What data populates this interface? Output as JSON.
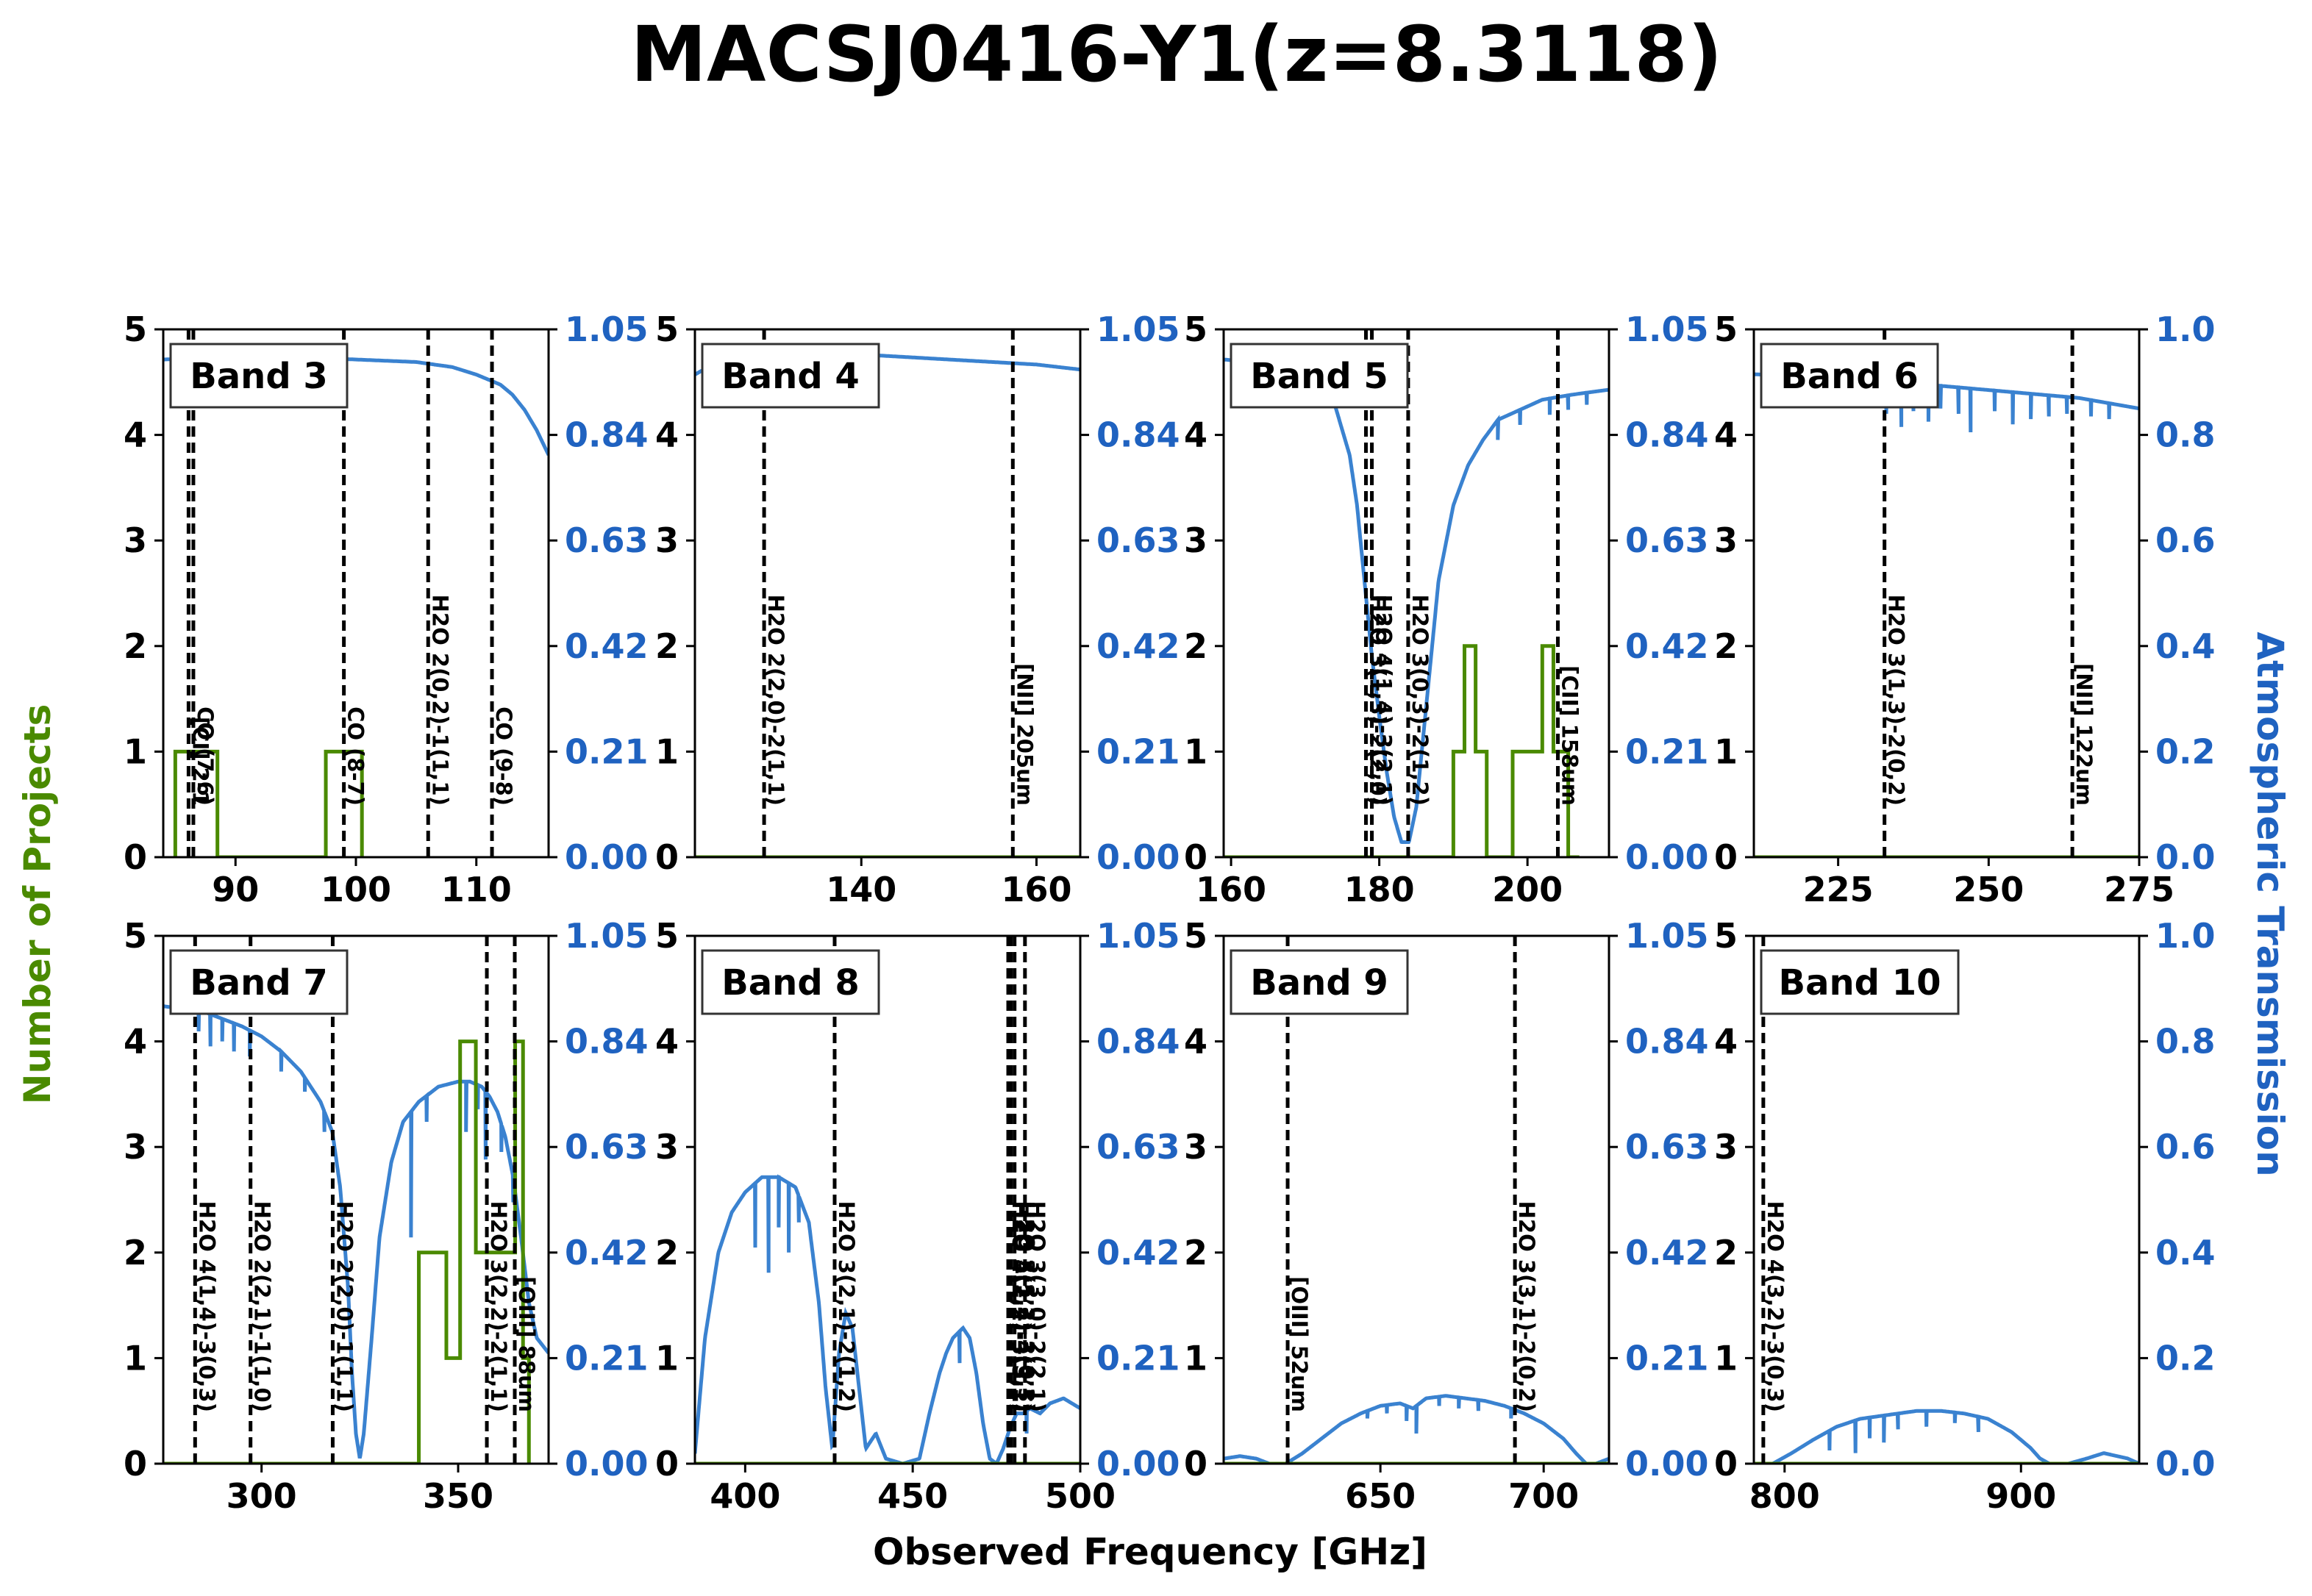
{
  "figure": {
    "title": "MACSJ0416-Y1(z=8.3118)",
    "xlabel": "Observed Frequency [GHz]",
    "ylabel_left": "Number of Projects",
    "ylabel_right": "Atmospheric Transmission",
    "colors": {
      "projects": "#4a8a00",
      "transmission": "#3a82d0",
      "right_axis": "#1f62c0",
      "left_label": "#4a8a00",
      "lines": "#000000"
    }
  },
  "chart_data": [
    {
      "type": "line",
      "band": "Band 3",
      "xlim": [
        84,
        116
      ],
      "ylim_left": [
        0,
        5
      ],
      "ylim_right": [
        0,
        1.05
      ],
      "xticks": [
        90,
        100,
        110
      ],
      "yticks_left": [
        0,
        1,
        2,
        3,
        4,
        5
      ],
      "yticks_right": [
        "0.00",
        "0.21",
        "0.42",
        "0.63",
        "0.84",
        "1.05"
      ],
      "projects_step": {
        "edges": [
          85,
          86,
          87,
          88.5,
          97.5,
          100.5
        ],
        "counts": [
          1,
          1,
          1,
          0,
          1
        ]
      },
      "transmission": {
        "x": [
          84,
          90,
          95,
          100,
          105,
          108,
          110,
          112,
          113,
          114,
          115,
          116
        ],
        "y": [
          0.99,
          0.995,
          0.995,
          0.99,
          0.985,
          0.975,
          0.96,
          0.94,
          0.92,
          0.89,
          0.85,
          0.8
        ]
      },
      "transmission_dips": [],
      "lines": [
        {
          "x": 86.1,
          "label": "[CI] 2-1"
        },
        {
          "x": 86.5,
          "label": "CO (7-6)"
        },
        {
          "x": 99.0,
          "label": "CO (8-7)"
        },
        {
          "x": 106.0,
          "label": "H2O 2(0,2)-1(1,1)"
        },
        {
          "x": 111.3,
          "label": "CO (9-8)"
        }
      ]
    },
    {
      "type": "line",
      "band": "Band 4",
      "xlim": [
        121,
        165
      ],
      "ylim_left": [
        0,
        5
      ],
      "ylim_right": [
        0,
        1.05
      ],
      "xticks": [
        140,
        160
      ],
      "yticks_left": [
        0,
        1,
        2,
        3,
        4,
        5
      ],
      "yticks_right": [
        "0.00",
        "0.21",
        "0.42",
        "0.63",
        "0.84",
        "1.05"
      ],
      "projects_step": {
        "edges": [
          121,
          165
        ],
        "counts": [
          0
        ]
      },
      "transmission": {
        "x": [
          121,
          123,
          126,
          130,
          135,
          140,
          145,
          150,
          155,
          160,
          165
        ],
        "y": [
          0.96,
          0.98,
          0.99,
          0.995,
          1.0,
          1.0,
          0.995,
          0.99,
          0.985,
          0.98,
          0.97
        ]
      },
      "transmission_dips": [],
      "lines": [
        {
          "x": 128.9,
          "label": "H2O 2(2,0)-2(1,1)"
        },
        {
          "x": 157.3,
          "label": "[NII] 205um"
        }
      ]
    },
    {
      "type": "line",
      "band": "Band 5",
      "xlim": [
        159,
        211
      ],
      "ylim_left": [
        0,
        5
      ],
      "ylim_right": [
        0,
        1.05
      ],
      "xticks": [
        160,
        180,
        200
      ],
      "yticks_left": [
        0,
        1,
        2,
        3,
        4,
        5
      ],
      "yticks_right": [
        "0.00",
        "0.21",
        "0.42",
        "0.63",
        "0.84",
        "1.05"
      ],
      "projects_step": {
        "edges": [
          159,
          190,
          191.5,
          193,
          194.5,
          198,
          202,
          203.5,
          205.5,
          207
        ],
        "counts": [
          0,
          1,
          2,
          1,
          0,
          1,
          2,
          1,
          0
        ]
      },
      "transmission": {
        "x": [
          159,
          163,
          167,
          170,
          172,
          174,
          176,
          177,
          178,
          179,
          180,
          181,
          182,
          183,
          184,
          185,
          186,
          187,
          188,
          190,
          192,
          194,
          196,
          199,
          202,
          206,
          211
        ],
        "y": [
          0.99,
          0.985,
          0.975,
          0.96,
          0.94,
          0.9,
          0.8,
          0.7,
          0.55,
          0.4,
          0.28,
          0.17,
          0.08,
          0.03,
          0.03,
          0.1,
          0.25,
          0.4,
          0.55,
          0.7,
          0.78,
          0.83,
          0.87,
          0.89,
          0.91,
          0.92,
          0.93
        ]
      },
      "transmission_dips": [
        [
          196,
          0.88,
          0.05
        ],
        [
          199,
          0.9,
          0.04
        ],
        [
          203,
          0.91,
          0.03
        ],
        [
          205.5,
          0.92,
          0.03
        ],
        [
          208,
          0.92,
          0.02
        ]
      ],
      "lines": [
        {
          "x": 178.2,
          "label": "H2O 3(1,3)-2(2,0)"
        },
        {
          "x": 179.0,
          "label": "H2O 4(1,4)-3(2,1)"
        },
        {
          "x": 183.9,
          "label": "H2O 3(0,3)-2(1,2)"
        },
        {
          "x": 204.1,
          "label": "[CII] 158um"
        }
      ]
    },
    {
      "type": "line",
      "band": "Band 6",
      "xlim": [
        211,
        275
      ],
      "ylim_left": [
        0,
        5
      ],
      "ylim_right": [
        0,
        1.0
      ],
      "xticks": [
        225,
        250,
        275
      ],
      "yticks_left": [
        0,
        1,
        2,
        3,
        4,
        5
      ],
      "yticks_right": [
        "0.0",
        "0.2",
        "0.4",
        "0.6",
        "0.8",
        "1.0"
      ],
      "projects_step": {
        "edges": [
          211,
          275
        ],
        "counts": [
          0
        ]
      },
      "transmission": {
        "x": [
          211,
          220,
          230,
          240,
          250,
          260,
          265,
          270,
          275
        ],
        "y": [
          0.915,
          0.91,
          0.9,
          0.895,
          0.885,
          0.875,
          0.87,
          0.86,
          0.85
        ]
      },
      "transmission_dips": [
        [
          230,
          0.9,
          0.04
        ],
        [
          233,
          0.9,
          0.06
        ],
        [
          235.5,
          0.895,
          0.08
        ],
        [
          237.5,
          0.895,
          0.05
        ],
        [
          240,
          0.895,
          0.07
        ],
        [
          242,
          0.89,
          0.04
        ],
        [
          245,
          0.89,
          0.05
        ],
        [
          247,
          0.885,
          0.08
        ],
        [
          251,
          0.885,
          0.04
        ],
        [
          254,
          0.88,
          0.06
        ],
        [
          257,
          0.88,
          0.05
        ],
        [
          260,
          0.875,
          0.04
        ],
        [
          263,
          0.87,
          0.03
        ],
        [
          267,
          0.865,
          0.03
        ],
        [
          270,
          0.86,
          0.03
        ]
      ],
      "lines": [
        {
          "x": 232.7,
          "label": "H2O 3(1,3)-2(0,2)"
        },
        {
          "x": 263.9,
          "label": "[NII] 122um"
        }
      ]
    },
    {
      "type": "line",
      "band": "Band 7",
      "xlim": [
        275,
        373
      ],
      "ylim_left": [
        0,
        5
      ],
      "ylim_right": [
        0,
        1.05
      ],
      "xticks": [
        300,
        350
      ],
      "yticks_left": [
        0,
        1,
        2,
        3,
        4,
        5
      ],
      "yticks_right": [
        "0.00",
        "0.21",
        "0.42",
        "0.63",
        "0.84",
        "1.05"
      ],
      "projects_step": {
        "edges": [
          275,
          340,
          347,
          350.5,
          354.5,
          362,
          364.5,
          366.5,
          368
        ],
        "counts": [
          0,
          2,
          1,
          4,
          2,
          2,
          4,
          1
        ]
      },
      "transmission": {
        "x": [
          275,
          285,
          295,
          300,
          305,
          310,
          315,
          318,
          320,
          322,
          323,
          324,
          325,
          326,
          328,
          330,
          333,
          336,
          340,
          345,
          350,
          353,
          356,
          358,
          360,
          362,
          364,
          366,
          368,
          370,
          373
        ],
        "y": [
          0.91,
          0.9,
          0.87,
          0.85,
          0.82,
          0.78,
          0.72,
          0.66,
          0.55,
          0.35,
          0.18,
          0.06,
          0.01,
          0.06,
          0.25,
          0.45,
          0.6,
          0.68,
          0.72,
          0.75,
          0.76,
          0.76,
          0.75,
          0.73,
          0.7,
          0.65,
          0.57,
          0.45,
          0.32,
          0.25,
          0.22
        ]
      },
      "transmission_dips": [
        [
          284,
          0.9,
          0.04
        ],
        [
          287,
          0.89,
          0.06
        ],
        [
          290,
          0.88,
          0.04
        ],
        [
          293,
          0.87,
          0.05
        ],
        [
          297,
          0.86,
          0.05
        ],
        [
          305,
          0.82,
          0.04
        ],
        [
          311,
          0.77,
          0.03
        ],
        [
          316,
          0.71,
          0.05
        ],
        [
          338,
          0.7,
          0.25
        ],
        [
          342,
          0.72,
          0.04
        ],
        [
          352,
          0.76,
          0.1
        ],
        [
          355,
          0.755,
          0.05
        ],
        [
          357,
          0.745,
          0.14
        ],
        [
          361,
          0.68,
          0.06
        ],
        [
          364,
          0.6,
          0.08
        ]
      ],
      "lines": [
        {
          "x": 283.1,
          "label": "H2O 4(1,4)-3(0,3)"
        },
        {
          "x": 297.2,
          "label": "H2O 2(2,1)-1(1,0)"
        },
        {
          "x": 318.1,
          "label": "H2O 2(2,0)-1(1,1)"
        },
        {
          "x": 357.3,
          "label": "H2O 3(2,2)-2(1,1)"
        },
        {
          "x": 364.4,
          "label": "[OIII] 88um"
        }
      ]
    },
    {
      "type": "line",
      "band": "Band 8",
      "xlim": [
        385,
        500
      ],
      "ylim_left": [
        0,
        5
      ],
      "ylim_right": [
        0,
        1.05
      ],
      "xticks": [
        400,
        450,
        500
      ],
      "yticks_left": [
        0,
        1,
        2,
        3,
        4,
        5
      ],
      "yticks_right": [
        "0.00",
        "0.21",
        "0.42",
        "0.63",
        "0.84",
        "1.05"
      ],
      "projects_step": {
        "edges": [
          385,
          500
        ],
        "counts": [
          0
        ]
      },
      "transmission": {
        "x": [
          385,
          388,
          392,
          396,
          400,
          405,
          410,
          415,
          419,
          422,
          424,
          426,
          428,
          430,
          432,
          434,
          436,
          439,
          442,
          447,
          452,
          455,
          458,
          460,
          462,
          465,
          467,
          469,
          471,
          473,
          475,
          477,
          479,
          481,
          483,
          485,
          488,
          491,
          495,
          500
        ],
        "y": [
          0.02,
          0.25,
          0.42,
          0.5,
          0.54,
          0.57,
          0.57,
          0.55,
          0.48,
          0.32,
          0.15,
          0.03,
          0.22,
          0.3,
          0.27,
          0.15,
          0.03,
          0.06,
          0.01,
          0.0,
          0.01,
          0.1,
          0.18,
          0.22,
          0.25,
          0.27,
          0.25,
          0.18,
          0.08,
          0.01,
          0.0,
          0.03,
          0.07,
          0.1,
          0.1,
          0.11,
          0.1,
          0.12,
          0.13,
          0.11
        ]
      },
      "transmission_dips": [
        [
          403,
          0.55,
          0.12
        ],
        [
          407,
          0.56,
          0.18
        ],
        [
          410,
          0.57,
          0.1
        ],
        [
          413,
          0.56,
          0.14
        ],
        [
          416,
          0.54,
          0.06
        ],
        [
          464,
          0.26,
          0.06
        ],
        [
          484,
          0.1,
          0.04
        ]
      ],
      "lines": [
        {
          "x": 426.7,
          "label": "H2O 3(2,1)-2(1,2)"
        },
        {
          "x": 478.5,
          "label": "H2O 4(2,2)-3(3,1)"
        },
        {
          "x": 479.3,
          "label": "H2O 5(2,4)-4(3,1)"
        },
        {
          "x": 480.4,
          "label": "H2O 3(1,2)-3(0,3)"
        },
        {
          "x": 483.5,
          "label": "H2O 3(3,0)-2(2,1)"
        }
      ]
    },
    {
      "type": "line",
      "band": "Band 9",
      "xlim": [
        602,
        720
      ],
      "ylim_left": [
        0,
        5
      ],
      "ylim_right": [
        0,
        1.05
      ],
      "xticks": [
        650,
        700
      ],
      "yticks_left": [
        0,
        1,
        2,
        3,
        4,
        5
      ],
      "yticks_right": [
        "0.00",
        "0.21",
        "0.42",
        "0.63",
        "0.84",
        "1.05"
      ],
      "projects_step": {
        "edges": [
          602,
          720
        ],
        "counts": [
          0
        ]
      },
      "transmission": {
        "x": [
          602,
          607,
          612,
          616,
          621,
          626,
          632,
          638,
          644,
          650,
          656,
          660,
          664,
          670,
          676,
          682,
          688,
          694,
          700,
          706,
          710,
          713,
          716,
          720
        ],
        "y": [
          0.01,
          0.015,
          0.01,
          0.0,
          0.0,
          0.02,
          0.05,
          0.08,
          0.1,
          0.115,
          0.12,
          0.11,
          0.13,
          0.135,
          0.13,
          0.125,
          0.115,
          0.1,
          0.08,
          0.05,
          0.02,
          0.0,
          0.0,
          0.01
        ]
      },
      "transmission_dips": [
        [
          646,
          0.11,
          0.02
        ],
        [
          652,
          0.12,
          0.02
        ],
        [
          658,
          0.115,
          0.03
        ],
        [
          661,
          0.11,
          0.05
        ],
        [
          668,
          0.135,
          0.02
        ],
        [
          674,
          0.13,
          0.02
        ],
        [
          680,
          0.125,
          0.02
        ],
        [
          690,
          0.11,
          0.02
        ]
      ],
      "lines": [
        {
          "x": 621.6,
          "label": "[OIII] 52um"
        },
        {
          "x": 691.2,
          "label": "H2O 3(3,1)-2(0,2)"
        }
      ]
    },
    {
      "type": "line",
      "band": "Band 10",
      "xlim": [
        787,
        950
      ],
      "ylim_left": [
        0,
        5
      ],
      "ylim_right": [
        0,
        1.0
      ],
      "xticks": [
        800,
        900
      ],
      "yticks_left": [
        0,
        1,
        2,
        3,
        4,
        5
      ],
      "yticks_right": [
        "0.0",
        "0.2",
        "0.4",
        "0.6",
        "0.8",
        "1.0"
      ],
      "projects_step": {
        "edges": [
          787,
          950
        ],
        "counts": [
          0
        ]
      },
      "transmission": {
        "x": [
          787,
          795,
          803,
          812,
          822,
          832,
          840,
          848,
          856,
          866,
          876,
          886,
          896,
          904,
          908,
          912,
          920,
          928,
          935,
          940,
          945,
          950
        ],
        "y": [
          0.0,
          0.0,
          0.02,
          0.045,
          0.07,
          0.085,
          0.09,
          0.095,
          0.1,
          0.1,
          0.095,
          0.085,
          0.06,
          0.03,
          0.01,
          0.0,
          0.0,
          0.01,
          0.02,
          0.015,
          0.01,
          0.0
        ]
      },
      "transmission_dips": [
        [
          819,
          0.065,
          0.04
        ],
        [
          830,
          0.08,
          0.06
        ],
        [
          836,
          0.088,
          0.04
        ],
        [
          842,
          0.09,
          0.05
        ],
        [
          848,
          0.095,
          0.03
        ],
        [
          860,
          0.1,
          0.03
        ],
        [
          872,
          0.097,
          0.02
        ],
        [
          882,
          0.09,
          0.03
        ]
      ],
      "lines": [
        {
          "x": 791.0,
          "label": "H2O 4(3,2)-3(0,3)"
        }
      ]
    }
  ]
}
